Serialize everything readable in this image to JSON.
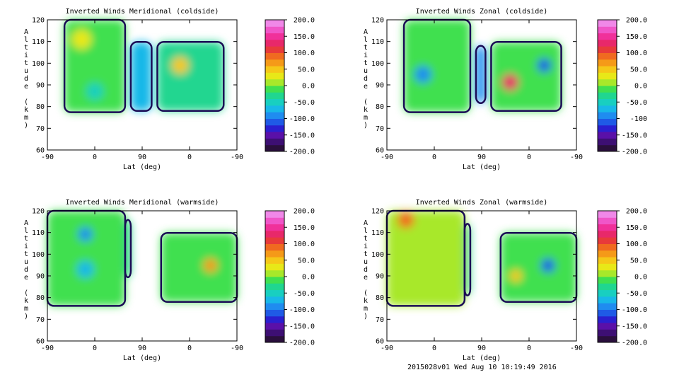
{
  "footer": "2015028v01 Wed Aug 10 10:19:49 2016",
  "chart_data": [
    {
      "type": "heatmap",
      "title": "Inverted Winds Meridional (coldside)",
      "xlabel": "Lat (deg)",
      "ylabel": "Altitude (km)",
      "xticks": [
        "-90",
        "0",
        "90",
        "0",
        "-90"
      ],
      "yticks": [
        120,
        110,
        100,
        90,
        80,
        70,
        60
      ],
      "ylim": [
        60,
        120
      ],
      "colorbar_ticks": [
        "200.0",
        "150.0",
        "100.0",
        "50.0",
        "0.0",
        "-50.0",
        "-100.0",
        "-150.0",
        "-200.0"
      ],
      "colorbar_range": [
        -200,
        200
      ]
    },
    {
      "type": "heatmap",
      "title": "Inverted Winds Zonal (coldside)",
      "xlabel": "Lat (deg)",
      "ylabel": "Altitude (km)",
      "xticks": [
        "-90",
        "0",
        "90",
        "0",
        "-90"
      ],
      "yticks": [
        120,
        110,
        100,
        90,
        80,
        70,
        60
      ],
      "ylim": [
        60,
        120
      ],
      "colorbar_ticks": [
        "200.0",
        "150.0",
        "100.0",
        "50.0",
        "0.0",
        "-50.0",
        "-100",
        "-150.0",
        "-200.0"
      ],
      "colorbar_range": [
        -200,
        200
      ]
    },
    {
      "type": "heatmap",
      "title": "Inverted Winds Meridional (warmside)",
      "xlabel": "Lat (deg)",
      "ylabel": "Altitude (km)",
      "xticks": [
        "-90",
        "0",
        "90",
        "0",
        "-90"
      ],
      "yticks": [
        120,
        110,
        100,
        90,
        80,
        70,
        60
      ],
      "ylim": [
        60,
        120
      ],
      "colorbar_ticks": [
        "200.0",
        "150.0",
        "100.0",
        "50.0",
        "0.0",
        "-50.0",
        "-100.0",
        "-150.0",
        "-200.0"
      ],
      "colorbar_range": [
        -200,
        200
      ]
    },
    {
      "type": "heatmap",
      "title": "Inverted Winds Zonal (warmside)",
      "xlabel": "Lat (deg)",
      "ylabel": "Altitude (km)",
      "xticks": [
        "-90",
        "0",
        "90",
        "0",
        "-90"
      ],
      "yticks": [
        120,
        110,
        100,
        90,
        80,
        70,
        60
      ],
      "ylim": [
        60,
        120
      ],
      "colorbar_ticks": [
        "200.0",
        "150.0",
        "100.0",
        "50.0",
        "0.0",
        "-50.0",
        "-100.0",
        "-150.0",
        "-200.0"
      ],
      "colorbar_range": [
        -200,
        200
      ]
    }
  ]
}
